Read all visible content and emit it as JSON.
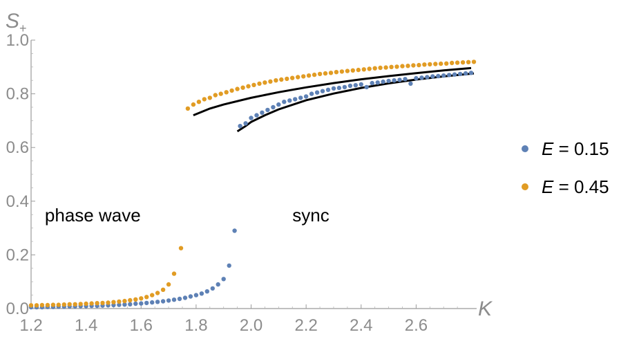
{
  "chart_data": {
    "type": "scatter",
    "xlabel": "K",
    "ylabel_main": "S",
    "ylabel_sub": "+",
    "xlim": [
      1.2,
      2.82
    ],
    "ylim": [
      0.0,
      1.0
    ],
    "x_ticks": [
      "1.2",
      "1.4",
      "1.6",
      "1.8",
      "2.0",
      "2.2",
      "2.4",
      "2.6"
    ],
    "x_tick_values": [
      1.2,
      1.4,
      1.6,
      1.8,
      2.0,
      2.2,
      2.4,
      2.6
    ],
    "y_ticks": [
      "0.0",
      "0.2",
      "0.4",
      "0.6",
      "0.8",
      "1.0"
    ],
    "y_tick_values": [
      0.0,
      0.2,
      0.4,
      0.6,
      0.8,
      1.0
    ],
    "annotations": [
      {
        "text": "phase wave",
        "x": 1.25,
        "y": 0.35
      },
      {
        "text": "sync",
        "x": 2.15,
        "y": 0.35
      }
    ],
    "legend_position": "right",
    "series": [
      {
        "name": "E = 0.15",
        "legend_var": "E",
        "legend_rest": " = 0.15",
        "color": "#5e81b5",
        "kind": "points",
        "x": [
          1.2,
          1.22,
          1.24,
          1.26,
          1.28,
          1.3,
          1.32,
          1.34,
          1.36,
          1.38,
          1.4,
          1.42,
          1.44,
          1.46,
          1.48,
          1.5,
          1.52,
          1.54,
          1.56,
          1.58,
          1.6,
          1.62,
          1.64,
          1.66,
          1.68,
          1.7,
          1.72,
          1.74,
          1.76,
          1.78,
          1.8,
          1.82,
          1.84,
          1.86,
          1.88,
          1.9,
          1.92,
          1.94,
          1.96,
          1.98,
          2.0,
          2.02,
          2.04,
          2.06,
          2.08,
          2.1,
          2.12,
          2.14,
          2.16,
          2.18,
          2.2,
          2.22,
          2.24,
          2.26,
          2.28,
          2.3,
          2.32,
          2.34,
          2.36,
          2.38,
          2.4,
          2.42,
          2.44,
          2.46,
          2.48,
          2.5,
          2.52,
          2.54,
          2.56,
          2.58,
          2.6,
          2.62,
          2.64,
          2.66,
          2.68,
          2.7,
          2.72,
          2.74,
          2.76,
          2.78,
          2.8
        ],
        "y": [
          0.005,
          0.005,
          0.005,
          0.006,
          0.006,
          0.007,
          0.007,
          0.008,
          0.008,
          0.009,
          0.009,
          0.01,
          0.01,
          0.011,
          0.012,
          0.013,
          0.014,
          0.015,
          0.016,
          0.018,
          0.019,
          0.021,
          0.023,
          0.025,
          0.027,
          0.03,
          0.033,
          0.036,
          0.04,
          0.045,
          0.05,
          0.056,
          0.064,
          0.075,
          0.09,
          0.11,
          0.16,
          0.29,
          0.68,
          0.69,
          0.71,
          0.72,
          0.73,
          0.74,
          0.75,
          0.76,
          0.77,
          0.775,
          0.78,
          0.785,
          0.79,
          0.8,
          0.805,
          0.81,
          0.815,
          0.82,
          0.822,
          0.825,
          0.83,
          0.832,
          0.835,
          0.825,
          0.84,
          0.842,
          0.845,
          0.848,
          0.85,
          0.852,
          0.855,
          0.838,
          0.858,
          0.86,
          0.862,
          0.865,
          0.866,
          0.868,
          0.87,
          0.872,
          0.874,
          0.876,
          0.878
        ]
      },
      {
        "name": "E = 0.45",
        "legend_var": "E",
        "legend_rest": " = 0.45",
        "color": "#e19c24",
        "kind": "points",
        "x": [
          1.2,
          1.22,
          1.24,
          1.26,
          1.28,
          1.3,
          1.32,
          1.34,
          1.36,
          1.38,
          1.4,
          1.42,
          1.44,
          1.46,
          1.48,
          1.5,
          1.52,
          1.54,
          1.56,
          1.58,
          1.6,
          1.62,
          1.64,
          1.66,
          1.68,
          1.7,
          1.72,
          1.745,
          1.77,
          1.79,
          1.81,
          1.83,
          1.85,
          1.87,
          1.89,
          1.91,
          1.93,
          1.95,
          1.97,
          1.99,
          2.01,
          2.03,
          2.05,
          2.07,
          2.09,
          2.11,
          2.13,
          2.15,
          2.17,
          2.19,
          2.21,
          2.23,
          2.25,
          2.27,
          2.29,
          2.31,
          2.33,
          2.35,
          2.37,
          2.39,
          2.41,
          2.43,
          2.45,
          2.47,
          2.49,
          2.51,
          2.53,
          2.55,
          2.57,
          2.59,
          2.61,
          2.63,
          2.65,
          2.67,
          2.69,
          2.71,
          2.73,
          2.75,
          2.77,
          2.79,
          2.81
        ],
        "y": [
          0.012,
          0.012,
          0.013,
          0.013,
          0.014,
          0.014,
          0.015,
          0.016,
          0.016,
          0.017,
          0.018,
          0.019,
          0.02,
          0.021,
          0.022,
          0.024,
          0.026,
          0.028,
          0.031,
          0.034,
          0.038,
          0.043,
          0.05,
          0.058,
          0.07,
          0.09,
          0.13,
          0.225,
          0.745,
          0.76,
          0.77,
          0.78,
          0.785,
          0.795,
          0.8,
          0.806,
          0.812,
          0.818,
          0.823,
          0.828,
          0.833,
          0.838,
          0.842,
          0.846,
          0.85,
          0.853,
          0.856,
          0.859,
          0.862,
          0.865,
          0.868,
          0.871,
          0.874,
          0.876,
          0.878,
          0.881,
          0.883,
          0.885,
          0.887,
          0.889,
          0.891,
          0.893,
          0.895,
          0.897,
          0.898,
          0.9,
          0.901,
          0.903,
          0.904,
          0.906,
          0.907,
          0.909,
          0.91,
          0.911,
          0.912,
          0.913,
          0.915,
          0.916,
          0.917,
          0.918,
          0.919
        ]
      },
      {
        "color": "#000000",
        "kind": "line",
        "x": [
          1.79,
          1.85,
          1.9,
          2.0,
          2.1,
          2.2,
          2.3,
          2.4,
          2.5,
          2.6,
          2.7,
          2.8
        ],
        "y": [
          0.72,
          0.745,
          0.76,
          0.785,
          0.806,
          0.824,
          0.84,
          0.854,
          0.866,
          0.877,
          0.887,
          0.896
        ]
      },
      {
        "color": "#000000",
        "kind": "line",
        "x": [
          1.95,
          1.98,
          2.0,
          2.05,
          2.1,
          2.2,
          2.3,
          2.4,
          2.5,
          2.6,
          2.7,
          2.81
        ],
        "y": [
          0.66,
          0.68,
          0.695,
          0.72,
          0.742,
          0.776,
          0.801,
          0.822,
          0.839,
          0.853,
          0.865,
          0.876
        ]
      }
    ]
  }
}
